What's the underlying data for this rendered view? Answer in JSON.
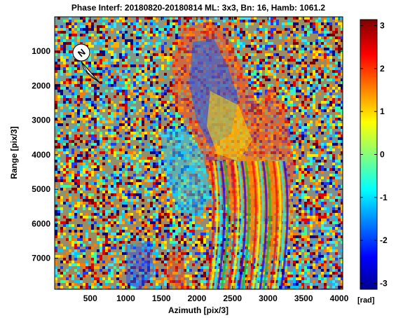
{
  "chart_data": {
    "type": "heatmap",
    "title": "Phase Interf: 20180820-20180814 ML: 3x3, Bn: 16, Hamb: 1061.2",
    "xlabel": "Azimuth [pix/3]",
    "ylabel": "Range [pix/3]",
    "xlim": [
      0,
      4050
    ],
    "ylim": [
      0,
      7900
    ],
    "y_reversed": true,
    "x_ticks": [
      500,
      1000,
      1500,
      2000,
      2500,
      3000,
      3500,
      4000
    ],
    "y_ticks": [
      1000,
      2000,
      3000,
      4000,
      5000,
      6000,
      7000
    ],
    "grid": false,
    "colormap": "jet",
    "colorbar": {
      "min": -3.14,
      "max": 3.14,
      "ticks": [
        -3,
        -2,
        -1,
        0,
        1,
        2,
        3
      ],
      "unit": "[rad]"
    },
    "colorbar_colors": [
      "#00008f",
      "#0000ff",
      "#00ffff",
      "#ffff00",
      "#ff0000",
      "#800000"
    ],
    "north_arrow": {
      "label": "N"
    }
  }
}
